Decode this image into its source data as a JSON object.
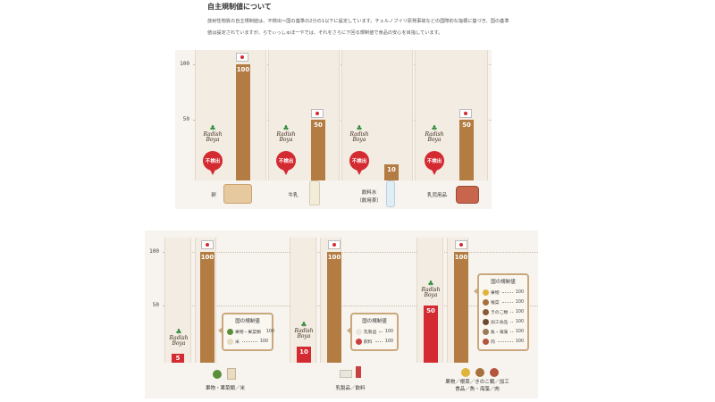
{
  "intro": {
    "title": "自主規制値について",
    "body": "放射性物質の自主規制値は、不検出〜国の基準の2分の1以下に設定しています。チェルノブイリ原発事故などの国際的な指標に基づき、国の基準値は設定されていますが、らでぃっしゅぼーやでは、それをさらに下回る規制値で食品の安心を目指しています。"
  },
  "brand": {
    "logo_text": "Radish Boya",
    "not_detected": "不検出"
  },
  "chart1": {
    "y_ticks": [
      "100",
      "50"
    ],
    "items": [
      {
        "label": "卵",
        "national": 100,
        "national_label": "100",
        "own": "不検出"
      },
      {
        "label": "牛乳",
        "national": 50,
        "national_label": "50",
        "own": "不検出"
      },
      {
        "label": "飲料水\n（飲用茶）",
        "national": 10,
        "national_label": "10",
        "own": "不検出"
      },
      {
        "label": "乳児用品",
        "national": 50,
        "national_label": "50",
        "own": "不検出"
      }
    ]
  },
  "chart2": {
    "y_ticks": [
      "100",
      "50"
    ],
    "groups": [
      {
        "label": "果物・果菜類／米",
        "own": 5,
        "own_label": "5",
        "national": 100,
        "national_label": "100",
        "box_title": "国の規制値",
        "rows": [
          {
            "name": "果物・果菜類",
            "value": "100"
          },
          {
            "name": "米",
            "value": "100"
          }
        ]
      },
      {
        "label": "乳製品／飲料",
        "own": 10,
        "own_label": "10",
        "national": 100,
        "national_label": "100",
        "box_title": "国の規制値",
        "rows": [
          {
            "name": "乳製品",
            "value": "100"
          },
          {
            "name": "飲料",
            "value": "100"
          }
        ]
      },
      {
        "label": "果物／根菜／きのこ類／加工食品／魚・海藻／肉",
        "own": 50,
        "own_label": "50",
        "national": 100,
        "national_label": "100",
        "box_title": "国の規制値",
        "rows": [
          {
            "name": "果物",
            "value": "100"
          },
          {
            "name": "根菜",
            "value": "100"
          },
          {
            "name": "きのこ類",
            "value": "100"
          },
          {
            "name": "加工食品",
            "value": "100"
          },
          {
            "name": "魚・海藻",
            "value": "100"
          },
          {
            "name": "肉",
            "value": "100"
          }
        ]
      }
    ]
  },
  "colors": {
    "national_bar": "#b27c43",
    "own_bar": "#d42a32",
    "panel": "#f7f3ee"
  }
}
